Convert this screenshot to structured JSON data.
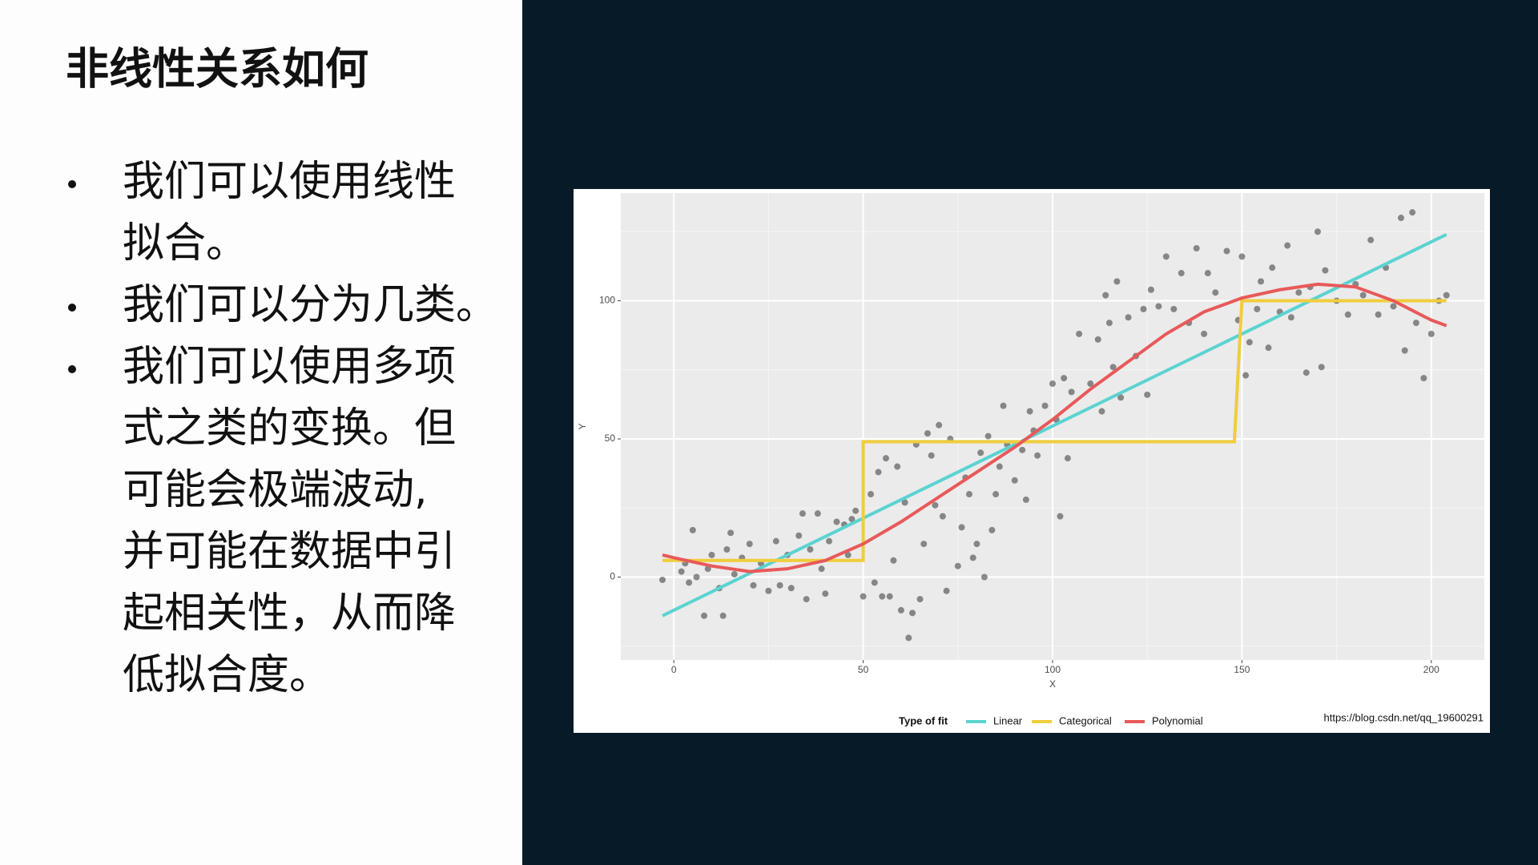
{
  "slide": {
    "title": "非线性关系如何",
    "bullets": [
      [
        "我们可以使用线性",
        "拟合。"
      ],
      [
        "我们可以分为几类。"
      ],
      [
        "我们可以使用多项",
        "式之类的变换。但",
        "可能会极端波动,",
        "并可能在数据中引",
        "起相关性，从而降",
        "低拟合度。"
      ]
    ]
  },
  "chart_data": {
    "type": "scatter",
    "x_label": "X",
    "y_label": "Y",
    "xlim": [
      -14,
      214
    ],
    "ylim": [
      -30,
      139
    ],
    "xticks": [
      0,
      50,
      100,
      150,
      200
    ],
    "yticks": [
      0,
      50,
      100
    ],
    "grid": true,
    "legend_title": "Type of fit",
    "legend_position": "bottom",
    "point_color": "#333333",
    "watermark": "https://blog.csdn.net/qq_19600291",
    "points": {
      "x": [
        -3,
        2,
        3,
        4,
        5,
        6,
        8,
        9,
        10,
        12,
        13,
        14,
        15,
        16,
        18,
        20,
        21,
        23,
        25,
        27,
        28,
        30,
        31,
        33,
        34,
        35,
        36,
        38,
        39,
        40,
        41,
        43,
        45,
        46,
        47,
        48,
        50,
        52,
        53,
        54,
        55,
        56,
        57,
        58,
        59,
        60,
        61,
        62,
        63,
        64,
        65,
        66,
        67,
        68,
        69,
        70,
        71,
        72,
        73,
        75,
        76,
        77,
        78,
        79,
        80,
        81,
        82,
        83,
        84,
        85,
        86,
        87,
        88,
        90,
        92,
        93,
        94,
        95,
        96,
        98,
        100,
        101,
        102,
        103,
        104,
        105,
        107,
        110,
        112,
        113,
        114,
        115,
        116,
        117,
        118,
        120,
        122,
        124,
        125,
        126,
        128,
        130,
        132,
        134,
        136,
        138,
        140,
        141,
        143,
        146,
        149,
        150,
        151,
        152,
        154,
        155,
        157,
        158,
        160,
        162,
        163,
        165,
        167,
        168,
        170,
        171,
        172,
        175,
        178,
        180,
        182,
        184,
        186,
        188,
        190,
        192,
        193,
        195,
        196,
        198,
        200,
        202,
        204
      ],
      "y": [
        -1,
        2,
        5,
        -2,
        17,
        0,
        -14,
        3,
        8,
        -4,
        -14,
        10,
        16,
        1,
        7,
        12,
        -3,
        5,
        -5,
        13,
        -3,
        8,
        -4,
        15,
        23,
        -8,
        10,
        23,
        3,
        -6,
        13,
        20,
        19,
        8,
        21,
        24,
        -7,
        30,
        -2,
        38,
        -7,
        43,
        -7,
        6,
        40,
        -12,
        27,
        -22,
        -13,
        48,
        -8,
        12,
        52,
        44,
        26,
        55,
        22,
        -5,
        50,
        4,
        18,
        36,
        30,
        7,
        12,
        45,
        0,
        51,
        17,
        30,
        40,
        62,
        48,
        35,
        46,
        28,
        60,
        53,
        44,
        62,
        70,
        57,
        22,
        72,
        43,
        67,
        88,
        70,
        86,
        60,
        102,
        92,
        76,
        107,
        65,
        94,
        80,
        97,
        66,
        104,
        98,
        116,
        97,
        110,
        92,
        119,
        88,
        110,
        103,
        118,
        93,
        116,
        73,
        85,
        97,
        107,
        83,
        112,
        96,
        120,
        94,
        103,
        74,
        105,
        125,
        76,
        111,
        100,
        95,
        106,
        102,
        122,
        95,
        112,
        98,
        130,
        82,
        132,
        92,
        72,
        88,
        100,
        102
      ]
    },
    "series": [
      {
        "name": "Linear",
        "color": "#5bd3d1",
        "x": [
          -3,
          204
        ],
        "values": [
          -14,
          124
        ]
      },
      {
        "name": "Categorical",
        "color": "#f0cd3c",
        "x": [
          -3,
          50,
          50,
          148,
          150,
          204
        ],
        "values": [
          6,
          6,
          49,
          49,
          100,
          100
        ]
      },
      {
        "name": "Polynomial",
        "color": "#e8595a",
        "x": [
          -3,
          0,
          10,
          20,
          30,
          40,
          50,
          60,
          70,
          80,
          90,
          100,
          110,
          120,
          130,
          140,
          150,
          160,
          170,
          180,
          190,
          200,
          204
        ],
        "values": [
          8,
          7,
          4,
          2,
          3,
          6,
          12,
          20,
          29,
          38,
          47,
          57,
          68,
          78,
          88,
          96,
          101,
          104,
          106,
          105,
          100,
          93,
          91
        ]
      }
    ]
  }
}
